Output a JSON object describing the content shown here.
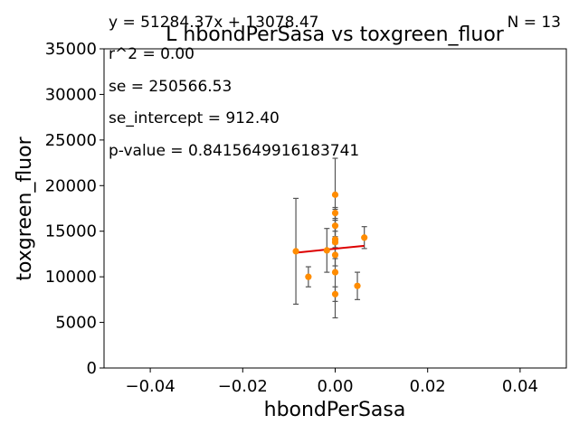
{
  "chart_data": {
    "type": "scatter",
    "title": "L hbondPerSasa vs toxgreen_fluor",
    "xlabel": "hbondPerSasa",
    "ylabel": "toxgreen_fluor",
    "xlim": [
      -0.05,
      0.05
    ],
    "ylim": [
      0,
      35000
    ],
    "x_ticks": [
      -0.04,
      -0.02,
      0.0,
      0.02,
      0.04
    ],
    "x_tick_labels": [
      "−0.04",
      "−0.02",
      "0.00",
      "0.02",
      "0.04"
    ],
    "y_ticks": [
      0,
      5000,
      10000,
      15000,
      20000,
      25000,
      30000,
      35000
    ],
    "y_tick_labels": [
      "0",
      "5000",
      "10000",
      "15000",
      "20000",
      "25000",
      "30000",
      "35000"
    ],
    "grid": false,
    "points": [
      {
        "x": -0.0085,
        "y": 12800,
        "err": 5800
      },
      {
        "x": -0.0058,
        "y": 10000,
        "err": 1100
      },
      {
        "x": -0.0018,
        "y": 12900,
        "err": 2400
      },
      {
        "x": 0.0,
        "y": 19000,
        "err": 4000
      },
      {
        "x": 0.0,
        "y": 17000,
        "err": 600
      },
      {
        "x": 0.0,
        "y": 15600,
        "err": 1800
      },
      {
        "x": 0.0,
        "y": 14100,
        "err": 2100
      },
      {
        "x": 0.0,
        "y": 13800,
        "err": 600
      },
      {
        "x": 0.0,
        "y": 12400,
        "err": 1200
      },
      {
        "x": 0.0,
        "y": 10500,
        "err": 5000
      },
      {
        "x": 0.0,
        "y": 8100,
        "err": 800
      },
      {
        "x": 0.0048,
        "y": 9000,
        "err": 1500
      },
      {
        "x": 0.0063,
        "y": 14300,
        "err": 1200
      }
    ],
    "fit_line": {
      "slope": 51284.37,
      "intercept": 13078.47,
      "x_range": [
        -0.0085,
        0.0063
      ]
    },
    "colors": {
      "points": "#ff8c00",
      "fit": "#dd0000",
      "errorbars": "#555555"
    },
    "annotations": {
      "equation": "y = 51284.37x + 13078.47",
      "n": "N = 13",
      "r2": "r^2 = 0.00",
      "se": "se = 250566.53",
      "se_intercept": "se_intercept = 912.40",
      "p_value": "p-value = 0.8415649916183741"
    }
  }
}
